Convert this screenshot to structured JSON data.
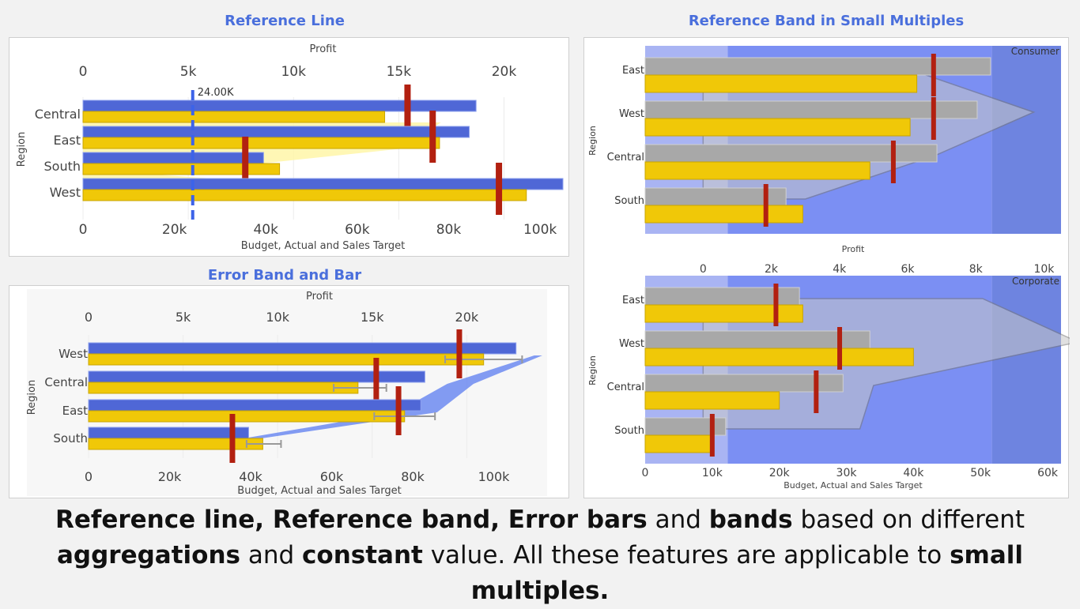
{
  "titles": {
    "reference_line": "Reference Line",
    "error_band": "Error Band and Bar",
    "small_multiples": "Reference Band in Small Multiples"
  },
  "caption": [
    {
      "text": "Reference line, Reference band, Error bars",
      "bold": true
    },
    {
      "text": " and ",
      "bold": false
    },
    {
      "text": "bands",
      "bold": true
    },
    {
      "text": " based on different ",
      "bold": false
    },
    {
      "text": "aggregations",
      "bold": true
    },
    {
      "text": " and ",
      "bold": false
    },
    {
      "text": "constant",
      "bold": true
    },
    {
      "text": " value.  All these features are applicable to ",
      "bold": false
    },
    {
      "text": "small multiples.",
      "bold": true
    }
  ],
  "colors": {
    "budget": "#4f67d6",
    "actual": "#f0c808",
    "target": "#b22010",
    "gray_bar": "#a8a8a8",
    "band_light": "#a9b4f3",
    "band_mid": "#7b8ff3",
    "band_dark": "#6e84e0",
    "title": "#4a6fdc"
  },
  "chart_data": [
    {
      "id": "reference_line",
      "type": "bar",
      "categories": [
        "Central",
        "East",
        "South",
        "West"
      ],
      "ylabel": "Region",
      "xlabel_bottom": "Budget, Actual and Sales Target",
      "xlabel_top": "Profit",
      "x_bottom": {
        "min": 0,
        "max": 105000,
        "ticks": [
          0,
          20000,
          40000,
          60000,
          80000,
          100000
        ],
        "tick_labels": [
          "0",
          "20k",
          "40k",
          "60k",
          "80k",
          "100k"
        ]
      },
      "x_top": {
        "min": 0,
        "max": 22800,
        "ticks": [
          0,
          5000,
          10000,
          15000,
          20000
        ],
        "tick_labels": [
          "0",
          "5k",
          "10k",
          "15k",
          "20k"
        ]
      },
      "series": [
        {
          "name": "Budget",
          "values": [
            86000,
            84500,
            39500,
            105000
          ]
        },
        {
          "name": "Actual",
          "values": [
            66000,
            78000,
            43000,
            97000
          ]
        },
        {
          "name": "Sales Target",
          "values": [
            71000,
            76500,
            35500,
            91000
          ]
        }
      ],
      "profit_polygon": [
        17000,
        15200,
        3500,
        20700
      ],
      "reference_line": {
        "value": 24000,
        "label": "24.00K"
      }
    },
    {
      "id": "error_band",
      "type": "bar",
      "categories": [
        "West",
        "Central",
        "East",
        "South"
      ],
      "ylabel": "Region",
      "xlabel_bottom": "Budget, Actual and Sales Target",
      "xlabel_top": "Profit",
      "x_bottom": {
        "min": 0,
        "max": 112000,
        "ticks": [
          0,
          20000,
          40000,
          60000,
          80000,
          100000
        ],
        "tick_labels": [
          "0",
          "20k",
          "40k",
          "60k",
          "80k",
          "100k"
        ]
      },
      "x_top": {
        "min": 0,
        "max": 24000,
        "ticks": [
          0,
          5000,
          10000,
          15000,
          20000
        ],
        "tick_labels": [
          "0",
          "5k",
          "10k",
          "15k",
          "20k"
        ]
      },
      "series": [
        {
          "name": "Budget",
          "values": [
            105500,
            83000,
            82000,
            39500
          ]
        },
        {
          "name": "Actual",
          "values": [
            97500,
            66500,
            78000,
            43000
          ]
        },
        {
          "name": "Sales Target",
          "values": [
            91500,
            71000,
            76500,
            35500
          ]
        }
      ],
      "error_bars": [
        [
          88000,
          107000
        ],
        [
          60500,
          73500
        ],
        [
          70500,
          85500
        ],
        [
          39000,
          47500
        ]
      ],
      "error_band": [
        [
          110000,
          112000
        ],
        [
          88500,
          95000
        ],
        [
          76000,
          86000
        ],
        [
          36000,
          40000
        ]
      ]
    },
    {
      "id": "small_multiples",
      "type": "bar",
      "categories": [
        "East",
        "West",
        "Central",
        "South"
      ],
      "ylabel": "Region",
      "xlabel_bottom": "Budget, Actual and Sales Target",
      "xlabel_top": "Profit",
      "x_bottom": {
        "min": 0,
        "max": 62000,
        "ticks": [
          0,
          10000,
          20000,
          30000,
          40000,
          50000,
          60000
        ],
        "tick_labels": [
          "0",
          "10k",
          "20k",
          "30k",
          "40k",
          "50k",
          "60k"
        ]
      },
      "x_top": {
        "min": -1700,
        "max": 10500,
        "ticks": [
          0,
          2000,
          4000,
          6000,
          8000,
          10000
        ],
        "tick_labels": [
          "0",
          "2k",
          "4k",
          "6k",
          "8k",
          "10k"
        ]
      },
      "bands": [
        12300,
        51700
      ],
      "panels": [
        {
          "name": "Consumer",
          "series": [
            {
              "name": "Budget",
              "values": [
                51500,
                49500,
                43500,
                21000
              ]
            },
            {
              "name": "Actual",
              "values": [
                40500,
                39500,
                33500,
                23500
              ]
            },
            {
              "name": "Sales Target",
              "values": [
                43000,
                43000,
                37000,
                18000
              ]
            }
          ],
          "profit_polygon": [
            6000,
            9700,
            6800,
            3000
          ]
        },
        {
          "name": "Corporate",
          "series": [
            {
              "name": "Budget",
              "values": [
                23000,
                33500,
                29500,
                12000
              ]
            },
            {
              "name": "Actual",
              "values": [
                23500,
                40000,
                20000,
                10000
              ]
            },
            {
              "name": "Sales Target",
              "values": [
                19500,
                29000,
                25500,
                10000
              ]
            }
          ],
          "profit_polygon": [
            8200,
            11000,
            5000,
            4600
          ]
        }
      ]
    }
  ]
}
